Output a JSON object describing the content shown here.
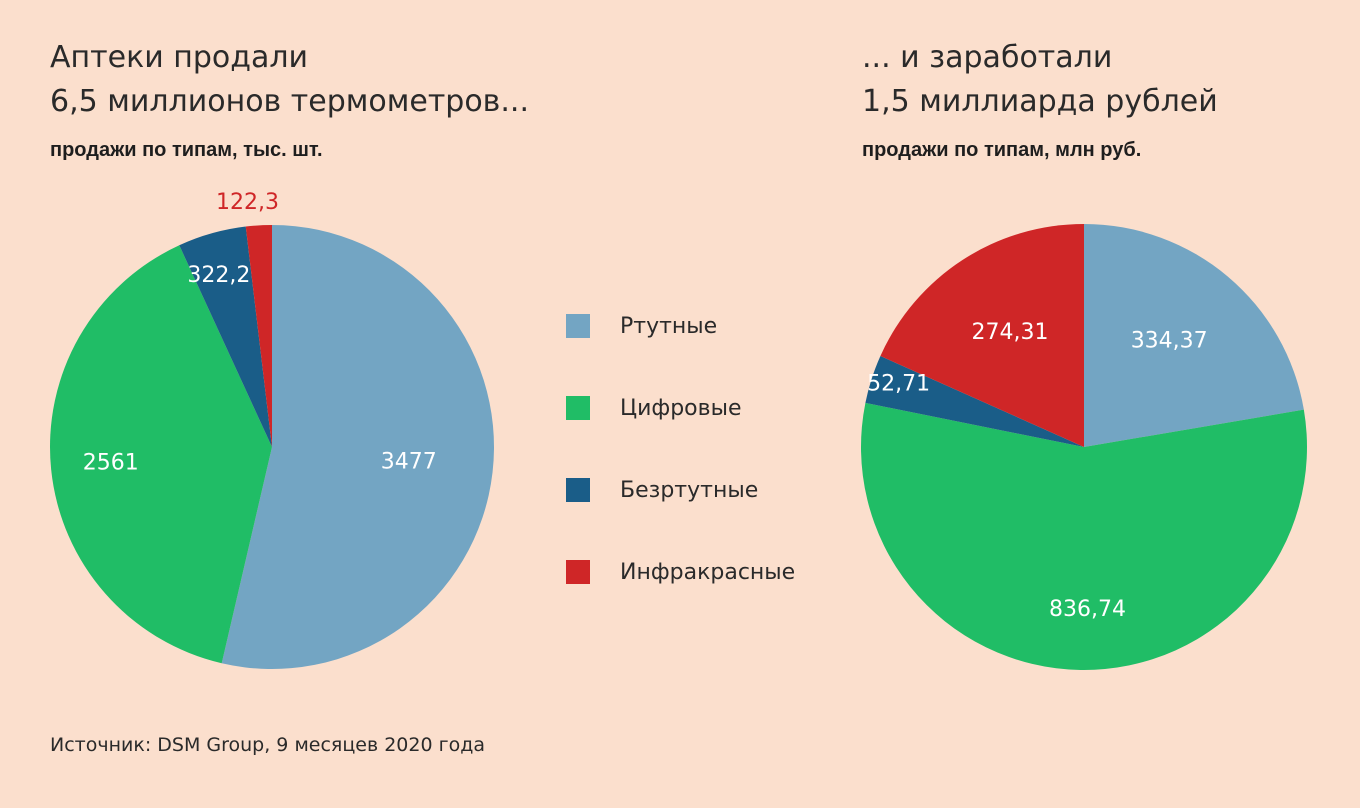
{
  "left": {
    "title_line1": "Аптеки продали",
    "title_line2": "6,5 миллионов термометров...",
    "subtitle": "продажи по типам, тыс. шт."
  },
  "right": {
    "title_line1": "... и заработали",
    "title_line2": "1,5 миллиарда рублей",
    "subtitle": "продажи по типам, млн руб."
  },
  "legend": [
    {
      "label": "Ртутные",
      "color": "#73a5c3"
    },
    {
      "label": "Цифровые",
      "color": "#20bd66"
    },
    {
      "label": "Безртутные",
      "color": "#1a5d88"
    },
    {
      "label": "Инфракрасные",
      "color": "#cf2627"
    }
  ],
  "source": "Источник: DSM Group, 9 месяцев 2020 года",
  "chart_data": [
    {
      "type": "pie",
      "title": "Аптеки продали 6,5 миллионов термометров...",
      "subtitle": "продажи по типам, тыс. шт.",
      "categories": [
        "Ртутные",
        "Цифровые",
        "Безртутные",
        "Инфракрасные"
      ],
      "values": [
        3477,
        2561,
        322.2,
        122.3
      ],
      "labels": [
        "3477",
        "2561",
        "322,2",
        "122,3"
      ],
      "colors": [
        "#73a5c3",
        "#20bd66",
        "#1a5d88",
        "#cf2627"
      ],
      "label_colors": [
        "#ffffff",
        "#ffffff",
        "#ffffff",
        "#cf2627"
      ],
      "start": "12 o'clock",
      "direction": "clockwise"
    },
    {
      "type": "pie",
      "title": "... и заработали 1,5 миллиарда рублей",
      "subtitle": "продажи по типам, млн руб.",
      "categories": [
        "Ртутные",
        "Цифровые",
        "Безртутные",
        "Инфракрасные"
      ],
      "values": [
        334.37,
        836.74,
        52.71,
        274.31
      ],
      "labels": [
        "334,37",
        "836,74",
        "52,71",
        "274,31"
      ],
      "colors": [
        "#73a5c3",
        "#20bd66",
        "#1a5d88",
        "#cf2627"
      ],
      "label_colors": [
        "#ffffff",
        "#ffffff",
        "#ffffff",
        "#ffffff"
      ],
      "start": "12 o'clock",
      "direction": "clockwise"
    }
  ]
}
